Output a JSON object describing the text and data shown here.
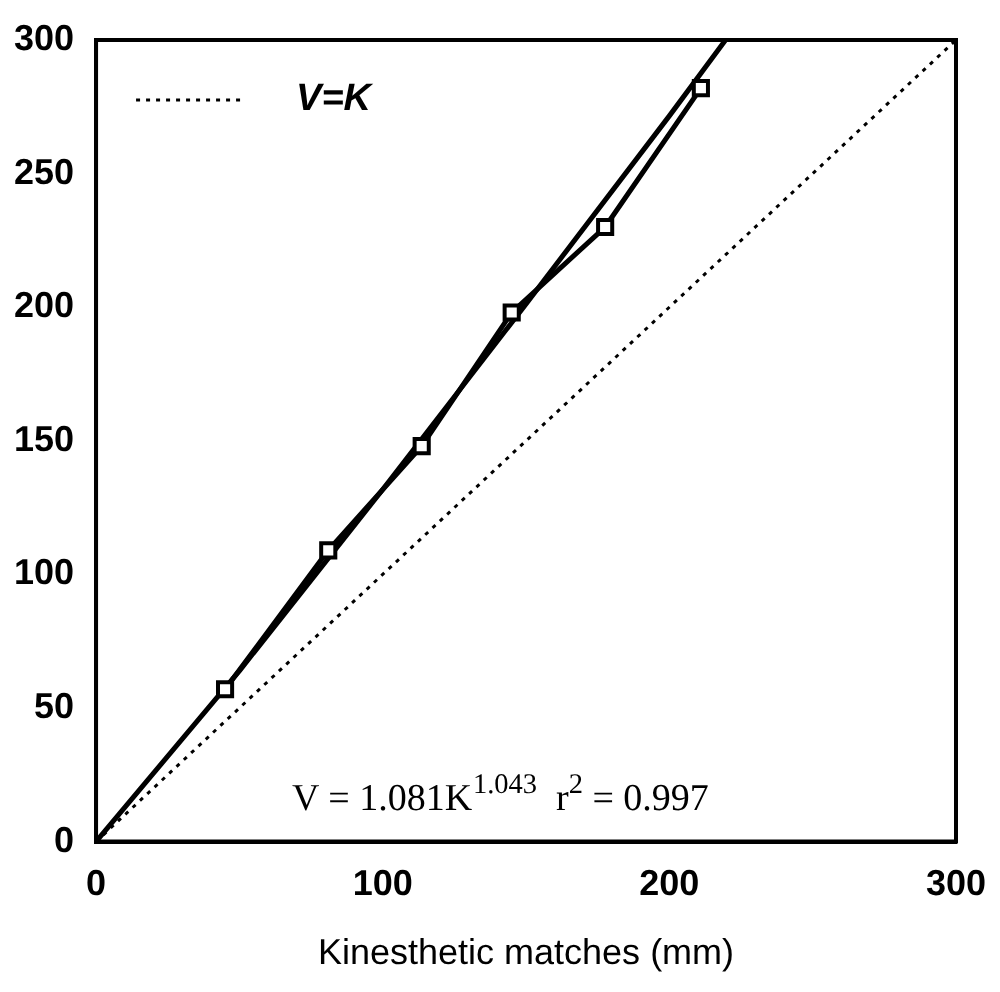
{
  "chart_data": {
    "type": "line",
    "xlabel": "Kinesthetic matches (mm)",
    "xlim": [
      0,
      300
    ],
    "xticks": [
      0,
      100,
      200,
      300
    ],
    "ylim": [
      0,
      300
    ],
    "yticks": [
      0,
      50,
      100,
      150,
      200,
      250,
      300
    ],
    "grid": false,
    "legend": "top left",
    "marker": "square",
    "series": [
      {
        "color": "#000000",
        "x": [
          45,
          81,
          113.6,
          145,
          177.6,
          211
        ],
        "values": [
          57,
          109,
          148,
          198,
          230,
          282
        ]
      },
      {
        "marker": "none",
        "color": "#000000",
        "x": [
          0,
          50,
          100,
          150,
          200,
          219.6
        ],
        "values": [
          0,
          63.9,
          131.8,
          201.2,
          271.6,
          300
        ]
      },
      {
        "marker": "none",
        "line_style": "dotted",
        "name": "V=K",
        "color": "#000000",
        "x": [
          0,
          300
        ],
        "values": [
          0,
          300
        ]
      }
    ],
    "annotations": [
      "V = 1.081K$^{1.043}$  r$^{2}$ = 0.997"
    ]
  }
}
